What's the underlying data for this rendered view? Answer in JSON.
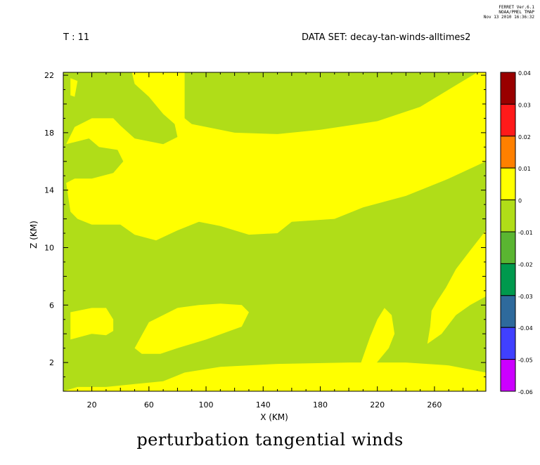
{
  "header": {
    "time_label": "T : 11",
    "dataset_label": "DATA SET: decay-tan-winds-alltimes2",
    "ferret_lines": [
      "FERRET Ver.6.1",
      "NOAA/PMEL TMAP",
      "Nov 13 2010 16:36:32"
    ]
  },
  "chart_data": {
    "type": "heatmap",
    "title": "perturbation tangential winds",
    "xlabel": "X (KM)",
    "ylabel": "Z (KM)",
    "xlim": [
      0,
      296
    ],
    "ylim": [
      0,
      22.2
    ],
    "x_ticks": [
      20,
      60,
      100,
      140,
      180,
      220,
      260
    ],
    "y_ticks": [
      2,
      6,
      10,
      14,
      18,
      22
    ],
    "colorbar": {
      "levels": [
        "0.04",
        "0.03",
        "0.02",
        "0.01",
        "0",
        "-0.01",
        "-0.02",
        "-0.03",
        "-0.04",
        "-0.05",
        "-0.06"
      ],
      "colors": [
        "#990000",
        "#ff1a1a",
        "#ff8000",
        "#ffff00",
        "#b0dd18",
        "#5ab531",
        "#00994d",
        "#2e6a9c",
        "#4040ff",
        "#cc00ff"
      ]
    },
    "field_colors": {
      "low": "#b0dd18",
      "high": "#ffff00"
    },
    "regions_positive": [
      [
        [
          48,
          22.2
        ],
        [
          85,
          22.2
        ],
        [
          85,
          19
        ],
        [
          90,
          18.6
        ],
        [
          110,
          18.2
        ],
        [
          120,
          18.0
        ],
        [
          150,
          17.9
        ],
        [
          180,
          18.2
        ],
        [
          220,
          18.8
        ],
        [
          250,
          19.8
        ],
        [
          270,
          21
        ],
        [
          290,
          22.2
        ],
        [
          296,
          22.2
        ],
        [
          296,
          16
        ],
        [
          270,
          14.8
        ],
        [
          240,
          13.6
        ],
        [
          210,
          12.8
        ],
        [
          190,
          12.0
        ],
        [
          160,
          11.8
        ],
        [
          150,
          11.0
        ],
        [
          130,
          10.9
        ],
        [
          110,
          11.5
        ],
        [
          95,
          11.8
        ],
        [
          80,
          11.2
        ],
        [
          65,
          10.5
        ],
        [
          50,
          10.9
        ],
        [
          40,
          11.6
        ],
        [
          20,
          11.6
        ],
        [
          10,
          12.0
        ],
        [
          5,
          12.5
        ],
        [
          2,
          14.5
        ],
        [
          8,
          14.8
        ],
        [
          20,
          14.8
        ],
        [
          35,
          15.2
        ],
        [
          42,
          16.0
        ],
        [
          38,
          16.8
        ],
        [
          25,
          17.0
        ],
        [
          18,
          17.6
        ],
        [
          10,
          17.4
        ],
        [
          2,
          17.2
        ],
        [
          8,
          18.4
        ],
        [
          20,
          19.0
        ],
        [
          35,
          19.0
        ],
        [
          40,
          18.5
        ],
        [
          50,
          17.6
        ],
        [
          70,
          17.2
        ],
        [
          80,
          17.7
        ],
        [
          78,
          18.6
        ],
        [
          70,
          19.3
        ],
        [
          60,
          20.5
        ],
        [
          50,
          21.4
        ]
      ],
      [
        [
          0,
          0
        ],
        [
          296,
          0
        ],
        [
          296,
          1.3
        ],
        [
          270,
          1.8
        ],
        [
          240,
          2.0
        ],
        [
          200,
          2.0
        ],
        [
          150,
          1.9
        ],
        [
          110,
          1.7
        ],
        [
          85,
          1.3
        ],
        [
          70,
          0.7
        ],
        [
          50,
          0.5
        ],
        [
          30,
          0.3
        ],
        [
          10,
          0.3
        ]
      ],
      [
        [
          5,
          21.8
        ],
        [
          10,
          21.6
        ],
        [
          8,
          20.5
        ],
        [
          5,
          20.6
        ]
      ],
      [
        [
          5,
          5.5
        ],
        [
          20,
          5.8
        ],
        [
          30,
          5.8
        ],
        [
          35,
          5.0
        ],
        [
          35,
          4.2
        ],
        [
          30,
          3.9
        ],
        [
          20,
          4.0
        ],
        [
          5,
          3.6
        ]
      ],
      [
        [
          50,
          3.0
        ],
        [
          60,
          4.8
        ],
        [
          80,
          5.8
        ],
        [
          95,
          6.0
        ],
        [
          110,
          6.1
        ],
        [
          125,
          6.0
        ],
        [
          130,
          5.5
        ],
        [
          125,
          4.5
        ],
        [
          100,
          3.6
        ],
        [
          80,
          3.0
        ],
        [
          68,
          2.6
        ],
        [
          55,
          2.6
        ]
      ],
      [
        [
          255,
          3.3
        ],
        [
          265,
          4.0
        ],
        [
          275,
          5.3
        ],
        [
          285,
          6.0
        ],
        [
          296,
          6.6
        ],
        [
          296,
          11.2
        ],
        [
          285,
          9.8
        ],
        [
          275,
          8.5
        ],
        [
          268,
          7.2
        ],
        [
          262,
          6.3
        ],
        [
          258,
          5.6
        ],
        [
          257,
          4.5
        ]
      ],
      [
        [
          205,
          1.0
        ],
        [
          210,
          2.4
        ],
        [
          215,
          3.8
        ],
        [
          220,
          5.0
        ],
        [
          225,
          5.8
        ],
        [
          230,
          5.3
        ],
        [
          232,
          4.0
        ],
        [
          228,
          3.0
        ],
        [
          218,
          1.8
        ]
      ]
    ]
  }
}
